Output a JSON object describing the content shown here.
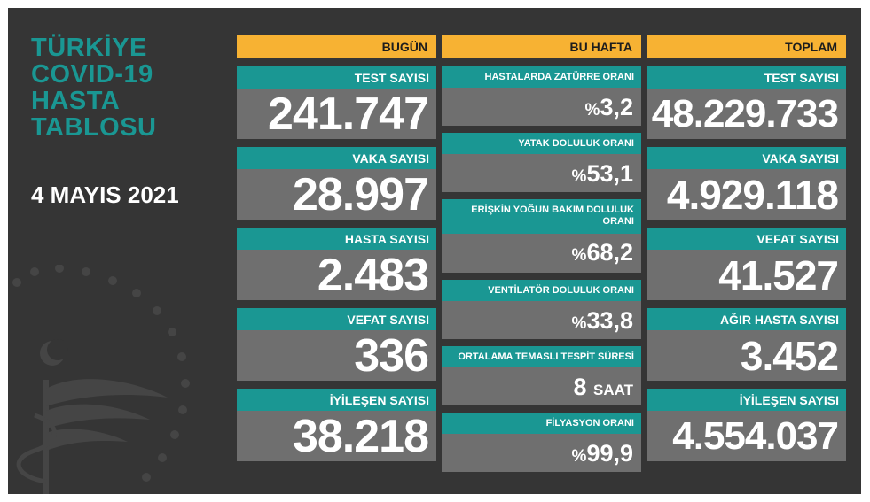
{
  "title_lines": [
    "TÜRKİYE",
    "COVID-19",
    "HASTA",
    "TABLOSU"
  ],
  "date": "4 MAYIS 2021",
  "colors": {
    "board": "#353535",
    "teal": "#1a9793",
    "orange": "#f7b233",
    "value_bg": "#6f6f6f"
  },
  "emblem": "ministry-of-health-emblem-icon",
  "bugun": {
    "header": "BUGÜN",
    "items": [
      {
        "label": "TEST SAYISI",
        "value": "241.747"
      },
      {
        "label": "VAKA SAYISI",
        "value": "28.997"
      },
      {
        "label": "HASTA SAYISI",
        "value": "2.483"
      },
      {
        "label": "VEFAT SAYISI",
        "value": "336"
      },
      {
        "label": "İYİLEŞEN SAYISI",
        "value": "38.218"
      }
    ]
  },
  "bu_hafta": {
    "header": "BU HAFTA",
    "items": [
      {
        "label": "HASTALARDA ZATÜRRE ORANI",
        "prefix": "%",
        "value": "3,2"
      },
      {
        "label": "YATAK DOLULUK ORANI",
        "prefix": "%",
        "value": "53,1"
      },
      {
        "label": "ERİŞKİN YOĞUN BAKIM DOLULUK",
        "label2": "ORANI",
        "prefix": "%",
        "value": "68,2"
      },
      {
        "label": "VENTİLATÖR DOLULUK ORANI",
        "prefix": "%",
        "value": "33,8"
      },
      {
        "label": "ORTALAMA TEMASLI TESPİT SÜRESİ",
        "value": "8",
        "unit": "SAAT"
      },
      {
        "label": "FİLYASYON ORANI",
        "prefix": "%",
        "value": "99,9"
      }
    ]
  },
  "toplam": {
    "header": "TOPLAM",
    "items": [
      {
        "label": "TEST SAYISI",
        "value": "48.229.733"
      },
      {
        "label": "VAKA SAYISI",
        "value": "4.929.118"
      },
      {
        "label": "VEFAT SAYISI",
        "value": "41.527"
      },
      {
        "label": "AĞIR HASTA SAYISI",
        "value": "3.452"
      },
      {
        "label": "İYİLEŞEN SAYISI",
        "value": "4.554.037"
      }
    ]
  }
}
